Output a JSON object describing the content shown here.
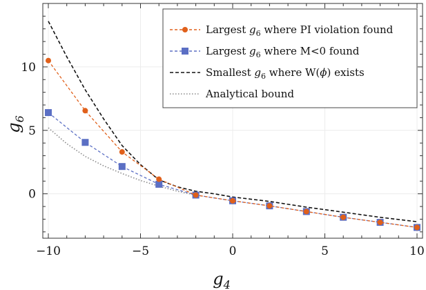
{
  "chart_data": {
    "type": "line",
    "xlabel": "g",
    "xlabel_sub": "4",
    "ylabel": "g",
    "ylabel_sub": "6",
    "xlim": [
      -10.3,
      10.3
    ],
    "ylim": [
      -3.5,
      15.0
    ],
    "xticks": [
      -10,
      -5,
      0,
      5,
      10
    ],
    "xtick_labels": [
      "−10",
      "−5",
      "0",
      "5",
      "10"
    ],
    "yticks": [
      0,
      5,
      10
    ],
    "ytick_labels": [
      "0",
      "5",
      "10"
    ],
    "grid": true,
    "legend_position": "top-right",
    "series": [
      {
        "name_parts": [
          "Largest ",
          "g",
          "6",
          " where PI violation found"
        ],
        "color": "#e0601b",
        "marker": "circle",
        "dash": "4,3",
        "x": [
          -10,
          -8,
          -6,
          -4,
          -2,
          0,
          2,
          4,
          6,
          8,
          10
        ],
        "y": [
          10.5,
          6.55,
          3.3,
          1.15,
          -0.1,
          -0.55,
          -0.95,
          -1.4,
          -1.85,
          -2.25,
          -2.65
        ]
      },
      {
        "name_parts": [
          "Largest ",
          "g",
          "6",
          " where M<0 found"
        ],
        "color": "#5b6fc4",
        "marker": "square",
        "dash": "4,3",
        "x": [
          -10,
          -8,
          -6,
          -4,
          -2,
          0,
          2,
          4,
          6,
          8,
          10
        ],
        "y": [
          6.4,
          4.05,
          2.15,
          0.75,
          -0.1,
          -0.55,
          -0.95,
          -1.4,
          -1.85,
          -2.25,
          -2.65
        ]
      },
      {
        "name_parts": [
          "Smallest ",
          "g",
          "6",
          " where W(",
          "ϕ",
          ") exists"
        ],
        "color": "#111111",
        "marker": "none",
        "dash": "5,3",
        "x": [
          -10,
          -9,
          -8,
          -7,
          -6,
          -5,
          -4,
          -3,
          -2,
          -1,
          0,
          2,
          4,
          6,
          8,
          10
        ],
        "y": [
          13.6,
          10.8,
          8.2,
          5.9,
          3.8,
          2.3,
          1.1,
          0.55,
          0.2,
          0.0,
          -0.25,
          -0.6,
          -1.05,
          -1.45,
          -1.85,
          -2.2
        ]
      },
      {
        "name_parts": [
          "Analytical bound"
        ],
        "color": "#888888",
        "marker": "none",
        "dash": "1.5,2.5",
        "x": [
          -10,
          -9,
          -8,
          -7,
          -6,
          -5,
          -4,
          -3,
          -2
        ],
        "y": [
          5.2,
          3.95,
          2.95,
          2.2,
          1.6,
          1.05,
          0.6,
          0.2,
          -0.1
        ]
      }
    ]
  }
}
